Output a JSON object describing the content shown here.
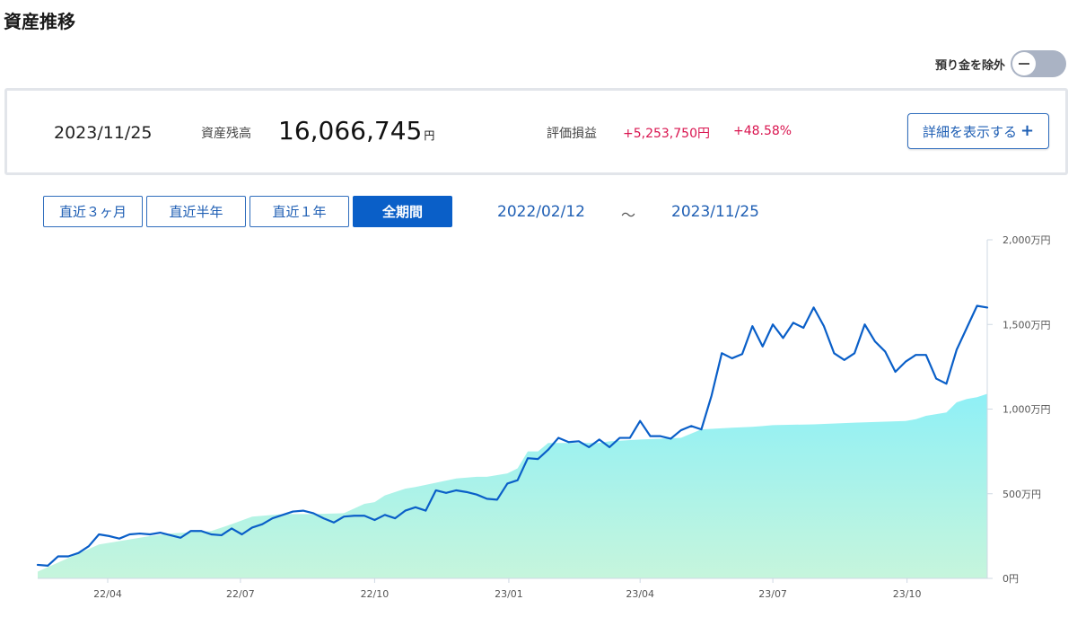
{
  "page": {
    "title": "資産推移"
  },
  "toggle": {
    "label": "預り金を除外"
  },
  "summary": {
    "date": "2023/11/25",
    "balance_label": "資産残高",
    "balance_value": "16,066,745",
    "balance_unit": "円",
    "pl_label": "評価損益",
    "pl_amount": "+5,253,750円",
    "pl_rate": "+48.58%",
    "detail_button": "詳細を表示する"
  },
  "periods": [
    {
      "label": "直近３ヶ月",
      "active": false
    },
    {
      "label": "直近半年",
      "active": false
    },
    {
      "label": "直近１年",
      "active": false
    },
    {
      "label": "全期間",
      "active": true
    }
  ],
  "range": {
    "from": "2022/02/12",
    "separator": "〜",
    "to": "2023/11/25"
  },
  "colors": {
    "line": "#0a5fc8",
    "area_top": "#8ff0f6",
    "area_bottom": "#c6f5dc",
    "accent": "#1f5fb4",
    "positive": "#d9144f"
  },
  "chart_data": {
    "type": "line",
    "ylim": [
      0,
      2000
    ],
    "yticks": [
      0,
      500,
      1000,
      1500,
      2000
    ],
    "ytick_labels": [
      "0円",
      "500万円",
      "1,000万円",
      "1,500万円",
      "2,000万円"
    ],
    "xticks": [
      {
        "date": "2022-04-01",
        "label": "22/04"
      },
      {
        "date": "2022-07-01",
        "label": "22/07"
      },
      {
        "date": "2022-10-01",
        "label": "22/10"
      },
      {
        "date": "2023-01-01",
        "label": "23/01"
      },
      {
        "date": "2023-04-01",
        "label": "23/04"
      },
      {
        "date": "2023-07-01",
        "label": "23/07"
      },
      {
        "date": "2023-10-01",
        "label": "23/10"
      }
    ],
    "series": [
      {
        "kind": "line",
        "x": [
          "2022-02-12",
          "2022-02-19",
          "2022-02-26",
          "2022-03-05",
          "2022-03-12",
          "2022-03-19",
          "2022-03-26",
          "2022-04-02",
          "2022-04-09",
          "2022-04-16",
          "2022-04-23",
          "2022-04-30",
          "2022-05-07",
          "2022-05-14",
          "2022-05-21",
          "2022-05-28",
          "2022-06-04",
          "2022-06-11",
          "2022-06-18",
          "2022-06-25",
          "2022-07-02",
          "2022-07-09",
          "2022-07-16",
          "2022-07-23",
          "2022-07-30",
          "2022-08-06",
          "2022-08-13",
          "2022-08-20",
          "2022-08-27",
          "2022-09-03",
          "2022-09-10",
          "2022-09-17",
          "2022-09-24",
          "2022-10-01",
          "2022-10-08",
          "2022-10-15",
          "2022-10-22",
          "2022-10-29",
          "2022-11-05",
          "2022-11-12",
          "2022-11-19",
          "2022-11-26",
          "2022-12-03",
          "2022-12-10",
          "2022-12-17",
          "2022-12-24",
          "2022-12-31",
          "2023-01-07",
          "2023-01-14",
          "2023-01-21",
          "2023-01-28",
          "2023-02-04",
          "2023-02-11",
          "2023-02-18",
          "2023-02-25",
          "2023-03-04",
          "2023-03-11",
          "2023-03-18",
          "2023-03-25",
          "2023-04-01",
          "2023-04-08",
          "2023-04-15",
          "2023-04-22",
          "2023-04-29",
          "2023-05-06",
          "2023-05-13",
          "2023-05-20",
          "2023-05-27",
          "2023-06-03",
          "2023-06-10",
          "2023-06-17",
          "2023-06-24",
          "2023-07-01",
          "2023-07-08",
          "2023-07-15",
          "2023-07-22",
          "2023-07-29",
          "2023-08-05",
          "2023-08-12",
          "2023-08-19",
          "2023-08-26",
          "2023-09-02",
          "2023-09-09",
          "2023-09-16",
          "2023-09-23",
          "2023-09-30",
          "2023-10-07",
          "2023-10-14",
          "2023-10-21",
          "2023-10-28",
          "2023-11-04",
          "2023-11-11",
          "2023-11-18",
          "2023-11-25"
        ],
        "values": [
          80,
          75,
          130,
          130,
          150,
          190,
          260,
          250,
          235,
          260,
          265,
          260,
          270,
          255,
          240,
          280,
          280,
          260,
          255,
          295,
          260,
          300,
          320,
          355,
          375,
          395,
          400,
          385,
          355,
          330,
          365,
          370,
          370,
          345,
          375,
          355,
          400,
          420,
          400,
          520,
          505,
          520,
          510,
          495,
          470,
          465,
          560,
          580,
          710,
          705,
          760,
          830,
          805,
          810,
          775,
          820,
          775,
          830,
          830,
          930,
          840,
          840,
          825,
          875,
          900,
          880,
          1080,
          1330,
          1300,
          1325,
          1490,
          1370,
          1500,
          1420,
          1510,
          1480,
          1600,
          1490,
          1330,
          1290,
          1330,
          1500,
          1400,
          1340,
          1220,
          1280,
          1320,
          1320,
          1180,
          1150,
          1350,
          1480,
          1610,
          1600
        ]
      },
      {
        "kind": "area",
        "x": [
          "2022-02-12",
          "2022-03-26",
          "2022-04-02",
          "2022-04-30",
          "2022-05-14",
          "2022-06-11",
          "2022-06-18",
          "2022-06-25",
          "2022-07-09",
          "2022-07-30",
          "2022-08-20",
          "2022-09-10",
          "2022-09-24",
          "2022-10-01",
          "2022-10-08",
          "2022-10-22",
          "2022-10-29",
          "2022-11-26",
          "2022-12-10",
          "2022-12-17",
          "2022-12-31",
          "2023-01-07",
          "2023-01-14",
          "2023-01-21",
          "2023-01-28",
          "2023-03-04",
          "2023-03-11",
          "2023-04-01",
          "2023-04-29",
          "2023-05-13",
          "2023-06-03",
          "2023-06-17",
          "2023-06-24",
          "2023-07-01",
          "2023-07-29",
          "2023-08-26",
          "2023-09-30",
          "2023-10-07",
          "2023-10-14",
          "2023-10-28",
          "2023-11-04",
          "2023-11-11",
          "2023-11-18",
          "2023-11-25"
        ],
        "values": [
          40,
          200,
          210,
          250,
          265,
          280,
          300,
          320,
          365,
          380,
          380,
          385,
          440,
          450,
          490,
          530,
          540,
          590,
          600,
          600,
          620,
          650,
          750,
          750,
          800,
          800,
          810,
          820,
          830,
          880,
          890,
          895,
          900,
          905,
          910,
          920,
          930,
          940,
          960,
          980,
          1040,
          1060,
          1070,
          1090
        ]
      }
    ]
  }
}
